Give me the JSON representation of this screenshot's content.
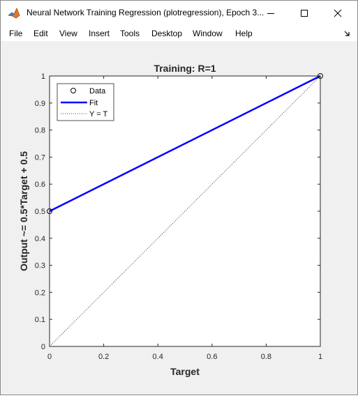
{
  "window": {
    "title": "Neural Network Training Regression (plotregression), Epoch 3...",
    "controls": {
      "minimize": "minimize",
      "maximize": "maximize",
      "close": "close"
    }
  },
  "menubar": {
    "items": [
      "File",
      "Edit",
      "View",
      "Insert",
      "Tools",
      "Desktop",
      "Window",
      "Help"
    ]
  },
  "chart_data": {
    "type": "scatter",
    "title": "Training: R=1",
    "xlabel": "Target",
    "ylabel": "Output ~= 0.5*Target + 0.5",
    "xlim": [
      0,
      1
    ],
    "ylim": [
      0,
      1
    ],
    "xticks": [
      "0",
      "0.2",
      "0.4",
      "0.6",
      "0.8",
      "1"
    ],
    "yticks": [
      "0",
      "0.1",
      "0.2",
      "0.3",
      "0.4",
      "0.5",
      "0.6",
      "0.7",
      "0.8",
      "0.9",
      "1"
    ],
    "grid": false,
    "legend_position": "top-left",
    "series": [
      {
        "name": "Data",
        "style": "circle-marker",
        "color": "#000000",
        "x": [
          0,
          1
        ],
        "y": [
          0.5,
          1
        ]
      },
      {
        "name": "Fit",
        "style": "solid-line",
        "color": "#0000ff",
        "x": [
          0,
          1
        ],
        "y": [
          0.5,
          1
        ]
      },
      {
        "name": "Y = T",
        "style": "dotted-line",
        "color": "#000000",
        "x": [
          0,
          1
        ],
        "y": [
          0,
          1
        ]
      }
    ]
  }
}
